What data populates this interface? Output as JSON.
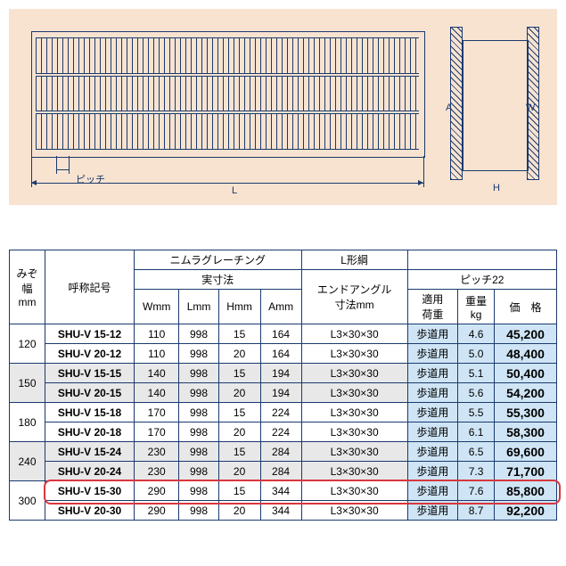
{
  "diagram": {
    "pitch_label": "ピッチ",
    "L_label": "L",
    "A_label": "A",
    "W_label": "W",
    "H_label": "H"
  },
  "table": {
    "headers": {
      "width_mm": "みぞ幅\nmm",
      "model": "呼称記号",
      "grating_group": "ニムラグレーチング",
      "outer_dims": "実寸法",
      "L_steel": "L形綱",
      "end_angle": "エンドアングル\n寸法mm",
      "pitch22": "ピッチ22",
      "Wmm": "Wmm",
      "Lmm": "Lmm",
      "Hmm": "Hmm",
      "Amm": "Amm",
      "load": "適用\n荷重",
      "weight": "重量\nkg",
      "price": "価　格"
    },
    "groups": [
      {
        "width": "120",
        "rows": [
          {
            "model": "SHU-V 15-12",
            "W": "110",
            "L": "998",
            "H": "15",
            "A": "164",
            "angle": "L3×30×30",
            "load": "歩道用",
            "weight": "4.6",
            "price": "45,200",
            "shade": false
          },
          {
            "model": "SHU-V 20-12",
            "W": "110",
            "L": "998",
            "H": "20",
            "A": "164",
            "angle": "L3×30×30",
            "load": "歩道用",
            "weight": "5.0",
            "price": "48,400",
            "shade": false
          }
        ]
      },
      {
        "width": "150",
        "rows": [
          {
            "model": "SHU-V 15-15",
            "W": "140",
            "L": "998",
            "H": "15",
            "A": "194",
            "angle": "L3×30×30",
            "load": "歩道用",
            "weight": "5.1",
            "price": "50,400",
            "shade": true
          },
          {
            "model": "SHU-V 20-15",
            "W": "140",
            "L": "998",
            "H": "20",
            "A": "194",
            "angle": "L3×30×30",
            "load": "歩道用",
            "weight": "5.6",
            "price": "54,200",
            "shade": true
          }
        ]
      },
      {
        "width": "180",
        "rows": [
          {
            "model": "SHU-V 15-18",
            "W": "170",
            "L": "998",
            "H": "15",
            "A": "224",
            "angle": "L3×30×30",
            "load": "歩道用",
            "weight": "5.5",
            "price": "55,300",
            "shade": false
          },
          {
            "model": "SHU-V 20-18",
            "W": "170",
            "L": "998",
            "H": "20",
            "A": "224",
            "angle": "L3×30×30",
            "load": "歩道用",
            "weight": "6.1",
            "price": "58,300",
            "shade": false
          }
        ]
      },
      {
        "width": "240",
        "rows": [
          {
            "model": "SHU-V 15-24",
            "W": "230",
            "L": "998",
            "H": "15",
            "A": "284",
            "angle": "L3×30×30",
            "load": "歩道用",
            "weight": "6.5",
            "price": "69,600",
            "shade": true
          },
          {
            "model": "SHU-V 20-24",
            "W": "230",
            "L": "998",
            "H": "20",
            "A": "284",
            "angle": "L3×30×30",
            "load": "歩道用",
            "weight": "7.3",
            "price": "71,700",
            "shade": true
          }
        ]
      },
      {
        "width": "300",
        "rows": [
          {
            "model": "SHU-V 15-30",
            "W": "290",
            "L": "998",
            "H": "15",
            "A": "344",
            "angle": "L3×30×30",
            "load": "歩道用",
            "weight": "7.6",
            "price": "85,800",
            "shade": false,
            "highlight": true
          },
          {
            "model": "SHU-V 20-30",
            "W": "290",
            "L": "998",
            "H": "20",
            "A": "344",
            "angle": "L3×30×30",
            "load": "歩道用",
            "weight": "8.7",
            "price": "92,200",
            "shade": false
          }
        ]
      }
    ]
  },
  "colors": {
    "line": "#1a3a6e",
    "bg_peach": "#f8e3d0",
    "bg_blue": "#cfe5f5",
    "bg_grey": "#e8e8e8",
    "highlight": "#d9363e"
  }
}
